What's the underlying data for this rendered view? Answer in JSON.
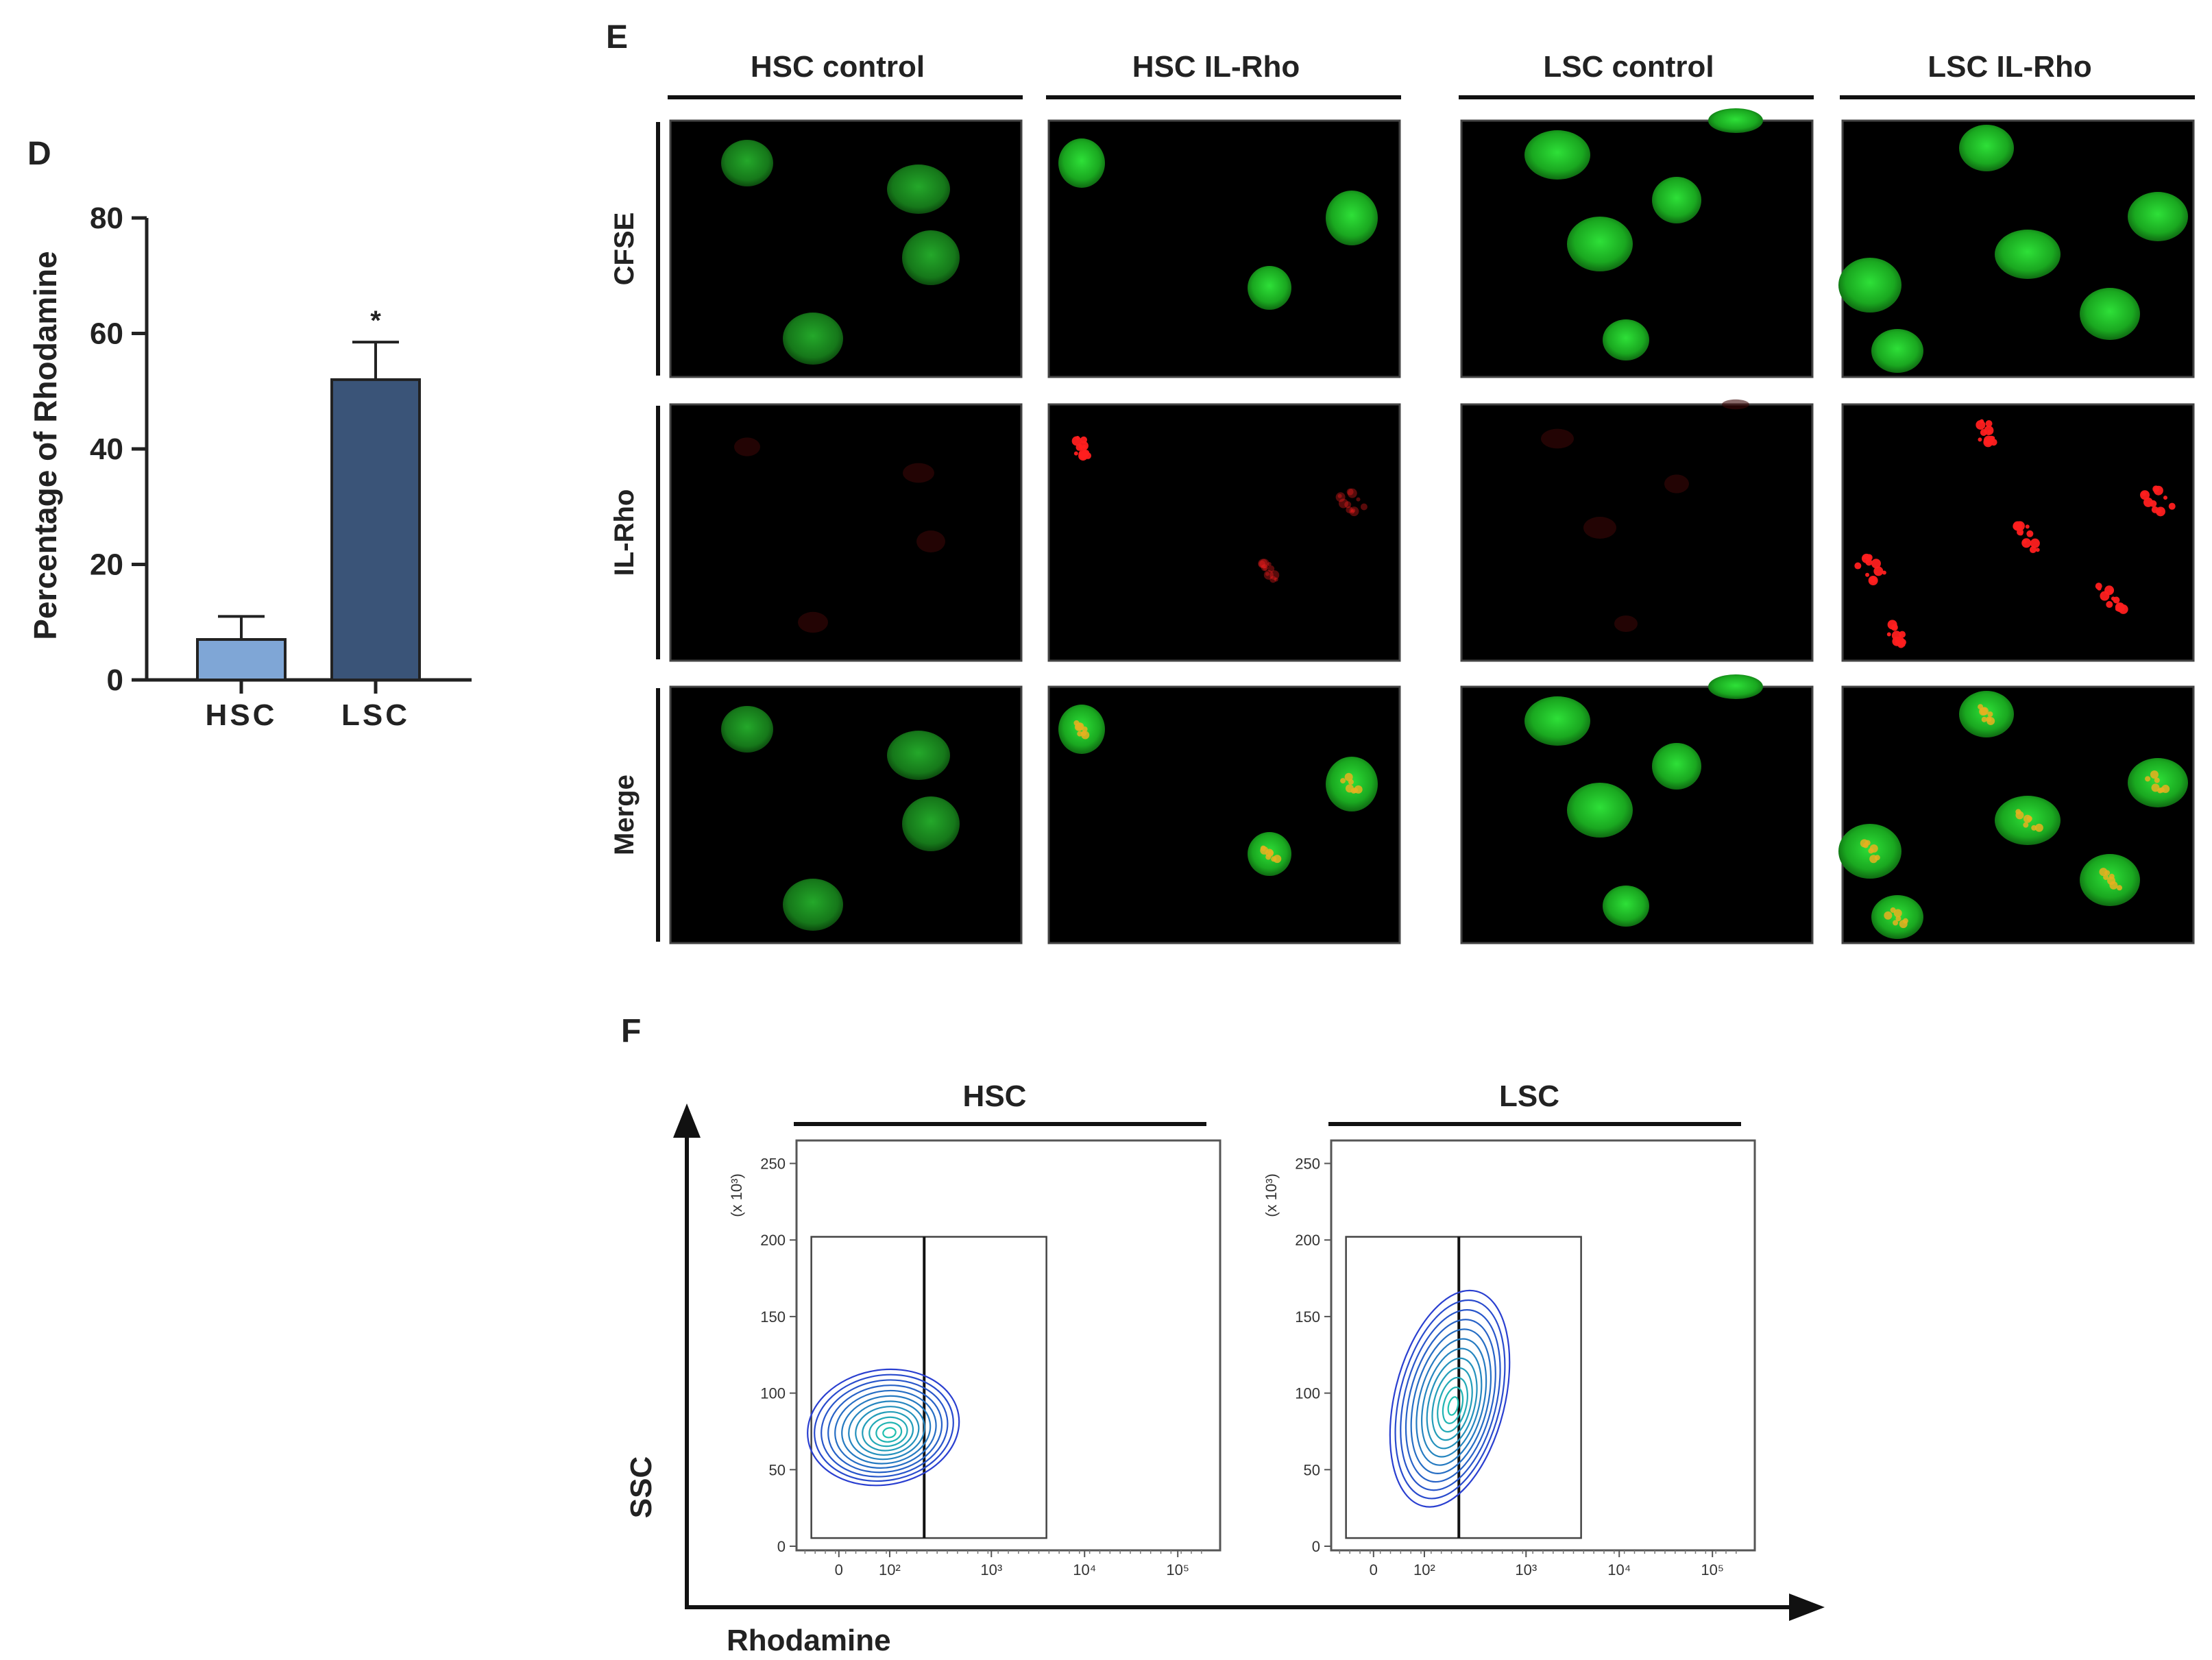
{
  "panel_d": {
    "letter": "D",
    "significance": "*",
    "chart_data": {
      "type": "bar",
      "categories": [
        "HSC",
        "LSC"
      ],
      "values": [
        7,
        52
      ],
      "errors": [
        4,
        6.5
      ],
      "title": "",
      "xlabel": "",
      "ylabel": "Percentage of Rhodamine",
      "ylim": [
        0,
        80
      ],
      "yticks": [
        "0",
        "20",
        "40",
        "60",
        "80"
      ],
      "bar_colors": [
        "#7fa6d6",
        "#3a5478"
      ],
      "grid": false
    }
  },
  "panel_e": {
    "letter": "E",
    "columns": [
      "HSC control",
      "HSC IL-Rho",
      "LSC control",
      "LSC IL-Rho"
    ],
    "rows": [
      "CFSE",
      "IL-Rho",
      "Merge"
    ],
    "colors": {
      "cfse": "#22c02a",
      "rho": "#ff1f1f",
      "merge": "#e8b020",
      "background": "#000000"
    }
  },
  "panel_f": {
    "letter": "F",
    "x_axis_label": "Rhodamine",
    "y_axis_label": "SSC",
    "y_scale_label": "(x 10³)",
    "yticks": [
      "0",
      "50",
      "100",
      "150",
      "200",
      "250"
    ],
    "xticks": [
      "0",
      "10²",
      "10³",
      "10⁴",
      "10⁵"
    ],
    "plots": [
      "HSC",
      "LSC"
    ],
    "contour_color_outer": "#2a3fd0",
    "contour_color_inner": "#20c0b0"
  }
}
